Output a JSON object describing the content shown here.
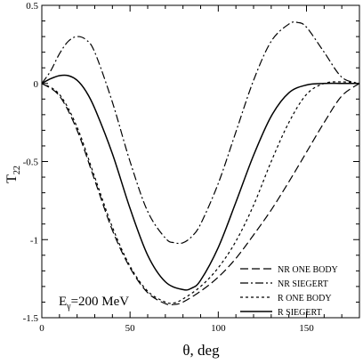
{
  "chart_data": {
    "type": "line",
    "title": "",
    "xlabel": "θ, deg",
    "ylabel": "T",
    "ylabel_sub": "22",
    "xlim": [
      0,
      180
    ],
    "ylim": [
      -1.5,
      0.5
    ],
    "xticks": [
      0,
      50,
      100,
      150
    ],
    "yticks": [
      0.5,
      0,
      -0.5,
      -1,
      -1.5
    ],
    "xtick_labels": [
      "0",
      "50",
      "100",
      "150"
    ],
    "ytick_labels": [
      "0.5",
      "0",
      "-0.5",
      "-1",
      "-1.5"
    ],
    "grid": false,
    "legend_position": "bottom-right",
    "annotation": {
      "prefix": "E",
      "sub": "γ",
      "suffix": "=200 MeV"
    },
    "series": [
      {
        "name": "NR ONE BODY",
        "dash": "9,4",
        "x": [
          0,
          10,
          20,
          30,
          40,
          50,
          60,
          70,
          75,
          80,
          90,
          100,
          110,
          120,
          130,
          140,
          150,
          160,
          170,
          180
        ],
        "y": [
          0,
          -0.08,
          -0.3,
          -0.62,
          -0.94,
          -1.18,
          -1.34,
          -1.41,
          -1.415,
          -1.4,
          -1.33,
          -1.24,
          -1.12,
          -0.97,
          -0.81,
          -0.63,
          -0.44,
          -0.25,
          -0.08,
          0
        ]
      },
      {
        "name": "NR SIEGERT",
        "dash": "9,3,2,3",
        "x": [
          0,
          5,
          10,
          15,
          20,
          25,
          30,
          40,
          50,
          60,
          70,
          75,
          80,
          85,
          90,
          100,
          110,
          120,
          130,
          140,
          145,
          150,
          160,
          170,
          180
        ],
        "y": [
          0,
          0.08,
          0.19,
          0.27,
          0.3,
          0.28,
          0.2,
          -0.12,
          -0.5,
          -0.82,
          -0.99,
          -1.02,
          -1.02,
          -0.98,
          -0.9,
          -0.64,
          -0.31,
          0.02,
          0.27,
          0.38,
          0.39,
          0.36,
          0.2,
          0.04,
          0
        ]
      },
      {
        "name": "R ONE BODY",
        "dash": "3,3",
        "x": [
          0,
          10,
          20,
          30,
          40,
          50,
          60,
          70,
          75,
          80,
          90,
          100,
          110,
          120,
          130,
          140,
          150,
          160,
          170,
          180
        ],
        "y": [
          0,
          -0.07,
          -0.28,
          -0.6,
          -0.92,
          -1.17,
          -1.33,
          -1.4,
          -1.405,
          -1.38,
          -1.3,
          -1.18,
          -1.01,
          -0.78,
          -0.5,
          -0.25,
          -0.07,
          0,
          0.01,
          0
        ]
      },
      {
        "name": "R SIEGERT",
        "dash": "",
        "x": [
          0,
          5,
          10,
          15,
          20,
          25,
          30,
          40,
          50,
          60,
          70,
          80,
          85,
          90,
          100,
          110,
          120,
          130,
          140,
          150,
          160,
          170,
          180
        ],
        "y": [
          0,
          0.03,
          0.05,
          0.05,
          0.02,
          -0.05,
          -0.16,
          -0.45,
          -0.8,
          -1.1,
          -1.27,
          -1.32,
          -1.31,
          -1.26,
          -1.05,
          -0.76,
          -0.46,
          -0.21,
          -0.06,
          -0.01,
          0.0,
          0.0,
          0
        ]
      }
    ]
  }
}
